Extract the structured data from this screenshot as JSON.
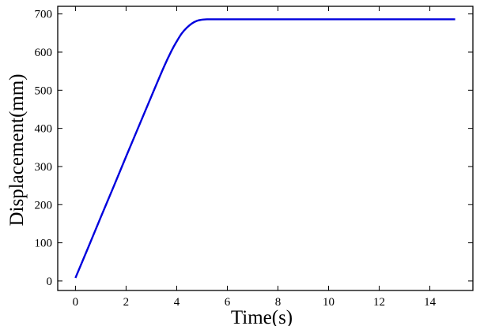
{
  "chart_data": {
    "type": "line",
    "title": "",
    "xlabel": "Time(s)",
    "ylabel": "Displacement(mm)",
    "xlim": [
      -0.7,
      15.7
    ],
    "ylim": [
      -25,
      720
    ],
    "xticks": [
      0,
      2,
      4,
      6,
      8,
      10,
      12,
      14
    ],
    "yticks": [
      0,
      100,
      200,
      300,
      400,
      500,
      600,
      700
    ],
    "tick_direction": "in",
    "grid": false,
    "legend": "none",
    "series": [
      {
        "color": "#0000dd",
        "x": [
          0,
          0.5,
          1,
          1.5,
          2,
          2.5,
          3,
          3.5,
          3.8,
          4,
          4.2,
          4.4,
          4.6,
          4.8,
          5,
          5.2,
          5.4,
          5.6,
          6,
          7,
          8,
          10,
          12,
          14,
          15
        ],
        "y": [
          8,
          87,
          167,
          246,
          326,
          405,
          484,
          562,
          604,
          628,
          649,
          664,
          675,
          682,
          685,
          686,
          686,
          686,
          686,
          686,
          686,
          686,
          686,
          686,
          686
        ]
      }
    ]
  }
}
